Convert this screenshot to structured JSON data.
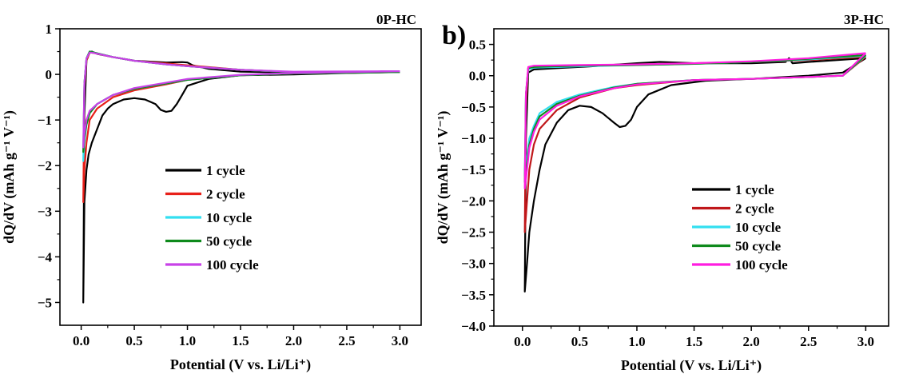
{
  "panel_b_letter": "b)",
  "chart_data": [
    {
      "type": "line",
      "title": "0P-HC",
      "xlabel": "Potential (V vs. Li/Li⁺)",
      "ylabel": "dQ/dV (mAh g⁻¹ V⁻¹)",
      "xlim": [
        -0.2,
        3.2
      ],
      "ylim": [
        -5.5,
        1.0
      ],
      "xticks": [
        0.0,
        0.5,
        1.0,
        1.5,
        2.0,
        2.5,
        3.0
      ],
      "xtick_labels": [
        "0.0",
        "0.5",
        "1.0",
        "1.5",
        "2.0",
        "2.5",
        "3.0"
      ],
      "yticks": [
        -5,
        -4,
        -3,
        -2,
        -1,
        0,
        1
      ],
      "ytick_labels": [
        "−5",
        "−4",
        "−3",
        "−2",
        "−1",
        "0",
        "1"
      ],
      "grid": false,
      "legend_position": "center",
      "series": [
        {
          "name": "1 cycle",
          "color": "#000000",
          "x": [
            3.0,
            2.5,
            2.0,
            1.5,
            1.2,
            1.0,
            0.95,
            0.9,
            0.85,
            0.8,
            0.75,
            0.7,
            0.6,
            0.5,
            0.4,
            0.3,
            0.25,
            0.2,
            0.15,
            0.1,
            0.07,
            0.05,
            0.03,
            0.02,
            0.03,
            0.05,
            0.08,
            0.1,
            0.15,
            0.3,
            0.5,
            0.8,
            0.95,
            1.0,
            1.05,
            1.2,
            1.5,
            2.0,
            2.3,
            2.4,
            2.5,
            3.0
          ],
          "y": [
            0.05,
            0.03,
            0.0,
            -0.02,
            -0.1,
            -0.25,
            -0.45,
            -0.65,
            -0.8,
            -0.82,
            -0.78,
            -0.65,
            -0.55,
            -0.52,
            -0.55,
            -0.65,
            -0.75,
            -0.9,
            -1.2,
            -1.5,
            -1.75,
            -2.1,
            -2.8,
            -5.0,
            -0.9,
            0.3,
            0.48,
            0.5,
            0.45,
            0.38,
            0.3,
            0.26,
            0.27,
            0.26,
            0.2,
            0.12,
            0.06,
            0.04,
            0.05,
            0.06,
            0.05,
            0.05
          ]
        },
        {
          "name": "2 cycle",
          "color": "#e8201a",
          "x": [
            3.0,
            2.0,
            1.5,
            1.0,
            0.8,
            0.5,
            0.3,
            0.15,
            0.08,
            0.05,
            0.03,
            0.02,
            0.03,
            0.05,
            0.08,
            0.12,
            0.3,
            0.5,
            0.8,
            1.0,
            1.5,
            2.0,
            3.0
          ],
          "y": [
            0.05,
            0.02,
            -0.02,
            -0.12,
            -0.22,
            -0.35,
            -0.5,
            -0.75,
            -1.0,
            -1.5,
            -2.1,
            -2.8,
            -0.3,
            0.3,
            0.48,
            0.47,
            0.38,
            0.3,
            0.24,
            0.2,
            0.1,
            0.05,
            0.05
          ]
        },
        {
          "name": "10 cycle",
          "color": "#33dff0",
          "x": [
            3.0,
            2.0,
            1.5,
            1.0,
            0.8,
            0.5,
            0.3,
            0.15,
            0.08,
            0.05,
            0.03,
            0.02,
            0.03,
            0.05,
            0.08,
            0.12,
            0.3,
            0.5,
            0.8,
            1.0,
            1.5,
            2.0,
            3.0
          ],
          "y": [
            0.05,
            0.02,
            -0.02,
            -0.12,
            -0.2,
            -0.32,
            -0.45,
            -0.65,
            -0.85,
            -1.1,
            -1.5,
            -1.9,
            -0.2,
            0.35,
            0.5,
            0.48,
            0.38,
            0.3,
            0.22,
            0.18,
            0.1,
            0.05,
            0.05
          ]
        },
        {
          "name": "50 cycle",
          "color": "#0e8a1c",
          "x": [
            3.0,
            2.0,
            1.5,
            1.0,
            0.8,
            0.5,
            0.3,
            0.15,
            0.08,
            0.05,
            0.03,
            0.02,
            0.03,
            0.05,
            0.08,
            0.12,
            0.3,
            0.5,
            0.8,
            1.0,
            1.5,
            2.0,
            3.0
          ],
          "y": [
            0.05,
            0.02,
            -0.02,
            -0.12,
            -0.2,
            -0.32,
            -0.45,
            -0.65,
            -0.85,
            -1.1,
            -1.4,
            -1.7,
            -0.2,
            0.35,
            0.5,
            0.48,
            0.38,
            0.3,
            0.22,
            0.18,
            0.1,
            0.05,
            0.05
          ]
        },
        {
          "name": "100 cycle",
          "color": "#c842e8",
          "x": [
            3.0,
            2.0,
            1.5,
            1.0,
            0.8,
            0.5,
            0.3,
            0.15,
            0.08,
            0.05,
            0.03,
            0.02,
            0.03,
            0.05,
            0.08,
            0.12,
            0.3,
            0.5,
            0.8,
            1.0,
            1.5,
            2.0,
            3.0
          ],
          "y": [
            0.07,
            0.03,
            -0.01,
            -0.1,
            -0.18,
            -0.3,
            -0.45,
            -0.65,
            -0.8,
            -1.0,
            -1.3,
            -1.6,
            -0.2,
            0.35,
            0.48,
            0.47,
            0.38,
            0.3,
            0.22,
            0.18,
            0.1,
            0.06,
            0.07
          ]
        }
      ]
    },
    {
      "type": "line",
      "title": "3P-HC",
      "xlabel": "Potential (V vs. Li/Li⁺)",
      "ylabel": "dQ/dV (mAh g⁻¹ V⁻¹)",
      "xlim": [
        -0.25,
        3.2
      ],
      "ylim": [
        -4.0,
        0.75
      ],
      "xticks": [
        0.0,
        0.5,
        1.0,
        1.5,
        2.0,
        2.5,
        3.0
      ],
      "xtick_labels": [
        "0.0",
        "0.5",
        "1.0",
        "1.5",
        "2.0",
        "2.5",
        "3.0"
      ],
      "yticks": [
        -4.0,
        -3.5,
        -3.0,
        -2.5,
        -2.0,
        -1.5,
        -1.0,
        -0.5,
        0.0,
        0.5
      ],
      "ytick_labels": [
        "−4.0",
        "−3.5",
        "−3.0",
        "−2.5",
        "−2.0",
        "−1.5",
        "−1.0",
        "−0.5",
        "0.0",
        "0.5"
      ],
      "grid": false,
      "legend_position": "center-left",
      "series": [
        {
          "name": "1 cycle",
          "color": "#000000",
          "x": [
            3.0,
            2.8,
            2.5,
            2.0,
            1.6,
            1.3,
            1.1,
            1.0,
            0.95,
            0.9,
            0.85,
            0.8,
            0.7,
            0.6,
            0.5,
            0.4,
            0.3,
            0.2,
            0.15,
            0.1,
            0.06,
            0.04,
            0.02,
            0.03,
            0.05,
            0.1,
            0.3,
            0.6,
            1.0,
            1.2,
            1.5,
            2.0,
            2.3,
            2.33,
            2.36,
            2.5,
            3.0
          ],
          "y": [
            0.28,
            0.05,
            0.0,
            -0.05,
            -0.08,
            -0.15,
            -0.3,
            -0.5,
            -0.7,
            -0.8,
            -0.82,
            -0.75,
            -0.6,
            -0.5,
            -0.48,
            -0.55,
            -0.75,
            -1.1,
            -1.5,
            -2.0,
            -2.5,
            -3.0,
            -3.45,
            -1.0,
            0.05,
            0.1,
            0.12,
            0.15,
            0.2,
            0.22,
            0.2,
            0.2,
            0.22,
            0.28,
            0.2,
            0.22,
            0.28
          ]
        },
        {
          "name": "2 cycle",
          "color": "#c0171a",
          "x": [
            3.0,
            2.8,
            2.5,
            2.0,
            1.5,
            1.0,
            0.8,
            0.5,
            0.3,
            0.15,
            0.1,
            0.06,
            0.04,
            0.02,
            0.03,
            0.05,
            0.1,
            0.5,
            1.0,
            1.5,
            2.0,
            2.5,
            3.0
          ],
          "y": [
            0.3,
            0.0,
            -0.02,
            -0.05,
            -0.07,
            -0.15,
            -0.2,
            -0.35,
            -0.55,
            -0.85,
            -1.1,
            -1.5,
            -2.0,
            -2.5,
            -0.5,
            0.12,
            0.15,
            0.16,
            0.18,
            0.2,
            0.22,
            0.25,
            0.3
          ]
        },
        {
          "name": "10 cycle",
          "color": "#33dff0",
          "x": [
            3.0,
            2.8,
            2.5,
            2.0,
            1.5,
            1.0,
            0.8,
            0.5,
            0.3,
            0.15,
            0.1,
            0.06,
            0.04,
            0.02,
            0.03,
            0.05,
            0.1,
            0.5,
            1.0,
            1.5,
            2.0,
            2.5,
            3.0
          ],
          "y": [
            0.32,
            0.0,
            -0.02,
            -0.05,
            -0.07,
            -0.13,
            -0.18,
            -0.3,
            -0.42,
            -0.6,
            -0.8,
            -1.0,
            -1.3,
            -1.6,
            -0.3,
            0.1,
            0.13,
            0.15,
            0.17,
            0.19,
            0.22,
            0.26,
            0.32
          ]
        },
        {
          "name": "50 cycle",
          "color": "#0e8a1c",
          "x": [
            3.0,
            2.8,
            2.5,
            2.0,
            1.5,
            1.0,
            0.8,
            0.5,
            0.3,
            0.15,
            0.1,
            0.06,
            0.04,
            0.02,
            0.03,
            0.05,
            0.1,
            0.5,
            1.0,
            1.5,
            2.0,
            2.5,
            3.0
          ],
          "y": [
            0.33,
            0.0,
            -0.02,
            -0.05,
            -0.07,
            -0.13,
            -0.19,
            -0.32,
            -0.45,
            -0.65,
            -0.85,
            -1.1,
            -1.4,
            -1.7,
            -0.3,
            0.12,
            0.14,
            0.16,
            0.17,
            0.19,
            0.22,
            0.27,
            0.33
          ]
        },
        {
          "name": "100 cycle",
          "color": "#ff1de0",
          "x": [
            3.0,
            2.8,
            2.5,
            2.0,
            1.5,
            1.0,
            0.8,
            0.5,
            0.3,
            0.15,
            0.1,
            0.06,
            0.04,
            0.02,
            0.03,
            0.05,
            0.1,
            0.5,
            1.0,
            1.5,
            2.0,
            2.5,
            3.0
          ],
          "y": [
            0.36,
            0.0,
            -0.02,
            -0.05,
            -0.07,
            -0.14,
            -0.2,
            -0.33,
            -0.48,
            -0.7,
            -0.9,
            -1.15,
            -1.5,
            -1.8,
            -0.3,
            0.14,
            0.16,
            0.17,
            0.18,
            0.2,
            0.23,
            0.28,
            0.36
          ]
        }
      ]
    }
  ]
}
